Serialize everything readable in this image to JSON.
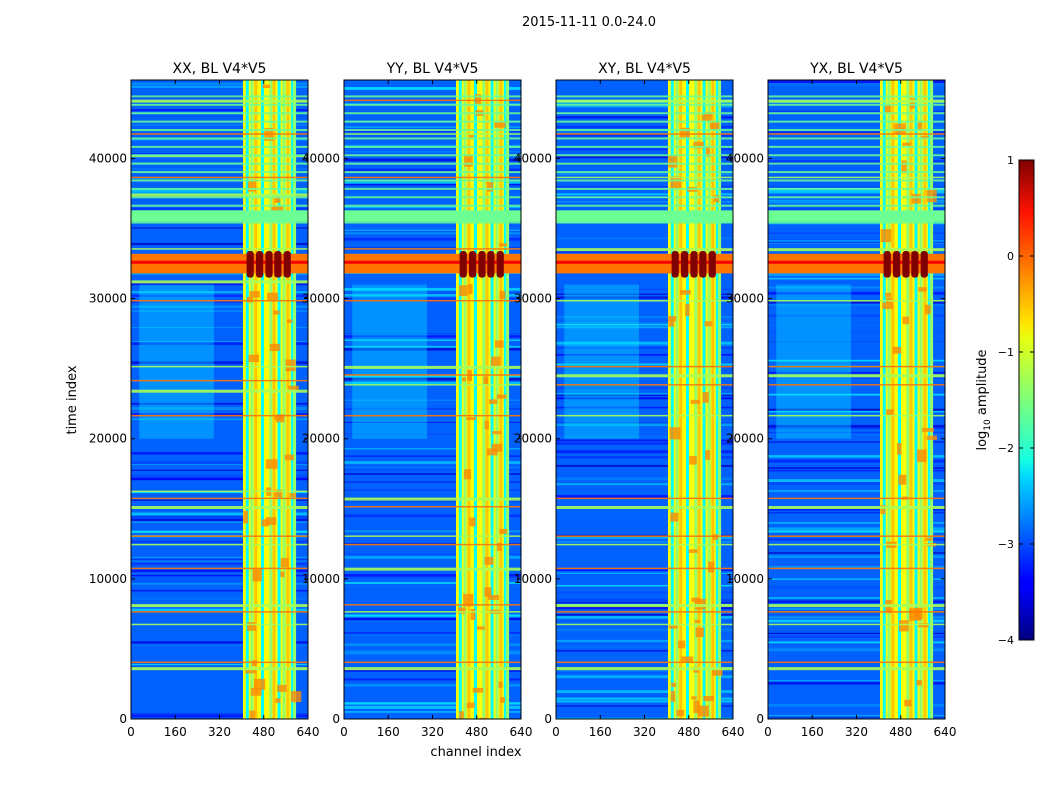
{
  "suptitle": "2015-11-11 0.0-24.0",
  "shared": {
    "xlabel": "channel index",
    "ylabel": "time index",
    "x_ticks": [
      "0",
      "160",
      "320",
      "480",
      "640"
    ],
    "x_tick_values": [
      0,
      160,
      320,
      480,
      640
    ],
    "y_ticks": [
      "0",
      "10000",
      "20000",
      "30000",
      "40000"
    ],
    "y_tick_values": [
      0,
      10000,
      20000,
      30000,
      40000
    ],
    "xlim": [
      0,
      640
    ],
    "ylim": [
      0,
      45600
    ]
  },
  "colorbar": {
    "label_prefix": "log",
    "label_sub": "10",
    "label_suffix": " amplitude",
    "ticks": [
      "1",
      "0",
      "−1",
      "−2",
      "−3",
      "−4"
    ],
    "tick_values": [
      1,
      0,
      -1,
      -2,
      -3,
      -4
    ],
    "range": [
      -4,
      1
    ],
    "colormap": "jet"
  },
  "chart_data": [
    {
      "type": "heatmap",
      "title": "XX, BL V4*V5",
      "xlabel": "",
      "ylabel": "time index",
      "xlim": [
        0,
        640
      ],
      "ylim": [
        0,
        45600
      ],
      "background_level": -2.9,
      "rfi_channel_range": [
        405,
        590
      ],
      "rfi_level": -0.9,
      "strong_rfi_time_range": [
        31800,
        33200
      ],
      "strong_rfi_level": 1.0,
      "broadband_rfi_times": [
        3700,
        4100,
        6800,
        7700,
        8200,
        10800,
        12500,
        13100,
        15200,
        15800,
        16300,
        21700,
        23500,
        24200,
        25200,
        29900,
        31300,
        32500,
        33600,
        36000,
        37500,
        38700,
        40200,
        41800,
        44200
      ]
    },
    {
      "type": "heatmap",
      "title": "YY, BL V4*V5",
      "xlabel": "channel index",
      "ylabel": "",
      "xlim": [
        0,
        640
      ],
      "ylim": [
        0,
        45600
      ],
      "background_level": -2.9,
      "rfi_channel_range": [
        405,
        590
      ],
      "rfi_level": -0.9,
      "strong_rfi_time_range": [
        31800,
        33200
      ],
      "strong_rfi_level": 1.0,
      "broadband_rfi_times": [
        3700,
        4100,
        7700,
        8200,
        10800,
        12500,
        13100,
        15200,
        15800,
        21700,
        23900,
        24600,
        25200,
        29900,
        32500,
        33600,
        36000,
        38700,
        41800,
        44200
      ]
    },
    {
      "type": "heatmap",
      "title": "XY, BL V4*V5",
      "xlabel": "",
      "ylabel": "",
      "xlim": [
        0,
        640
      ],
      "ylim": [
        0,
        45600
      ],
      "background_level": -2.9,
      "rfi_channel_range": [
        405,
        590
      ],
      "rfi_level": -0.9,
      "strong_rfi_time_range": [
        31800,
        33200
      ],
      "strong_rfi_level": 1.0,
      "broadband_rfi_times": [
        3700,
        4100,
        6800,
        7700,
        8200,
        10800,
        12500,
        13100,
        15200,
        15800,
        21700,
        23900,
        24600,
        25200,
        29900,
        32500,
        33600,
        36000,
        38700,
        41800,
        44200
      ]
    },
    {
      "type": "heatmap",
      "title": "YX, BL V4*V5",
      "xlabel": "",
      "ylabel": "",
      "xlim": [
        0,
        640
      ],
      "ylim": [
        0,
        45600
      ],
      "background_level": -2.9,
      "rfi_channel_range": [
        405,
        590
      ],
      "rfi_level": -0.9,
      "strong_rfi_time_range": [
        31800,
        33200
      ],
      "strong_rfi_level": 1.0,
      "broadband_rfi_times": [
        3700,
        4100,
        6800,
        7700,
        8200,
        10800,
        12500,
        13100,
        15200,
        15800,
        21700,
        23900,
        24600,
        25200,
        29900,
        32500,
        33600,
        36000,
        38700,
        41800,
        44200
      ]
    }
  ]
}
